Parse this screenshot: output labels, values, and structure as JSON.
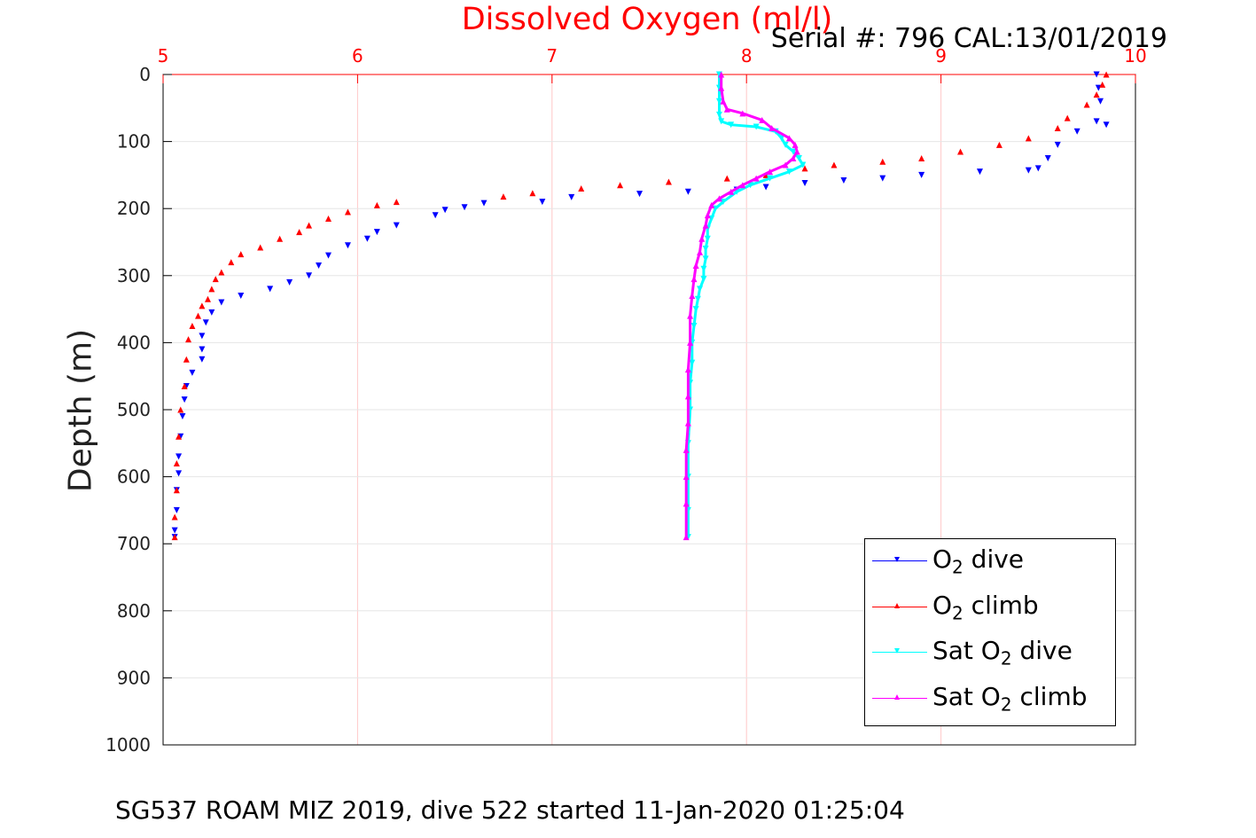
{
  "title": "Dissolved Oxygen (ml/l)",
  "serial_text": "Serial #: 796  CAL:13/01/2019",
  "caption": "SG537 ROAM MIZ 2019, dive 522 started 11-Jan-2020 01:25:04",
  "legend": {
    "items": [
      {
        "pre": "O",
        "sub": "2",
        "post": " dive"
      },
      {
        "pre": "O",
        "sub": "2",
        "post": " climb"
      },
      {
        "pre": "Sat O",
        "sub": "2",
        "post": " dive"
      },
      {
        "pre": "Sat O",
        "sub": "2",
        "post": " climb"
      }
    ]
  },
  "chart_data": {
    "type": "scatter",
    "title": "Dissolved Oxygen (ml/l)",
    "xlabel": "",
    "ylabel": "Depth (m)",
    "xlim": [
      5,
      10
    ],
    "ylim": [
      0,
      1000
    ],
    "y_reversed": true,
    "x_axis_position": "top",
    "x_ticks": [
      5,
      6,
      7,
      8,
      9,
      10
    ],
    "y_ticks": [
      0,
      100,
      200,
      300,
      400,
      500,
      600,
      700,
      800,
      900,
      1000
    ],
    "grid": true,
    "legend_position": "bottom-right",
    "colors": {
      "x_axis": "#ff0000",
      "grid": "#ffc8c8"
    },
    "series": [
      {
        "name": "O2 dive",
        "color": "#0000ff",
        "marker": "triangle-down",
        "points": [
          [
            9.8,
            0
          ],
          [
            9.81,
            20
          ],
          [
            9.82,
            40
          ],
          [
            9.8,
            70
          ],
          [
            9.85,
            75
          ],
          [
            9.7,
            85
          ],
          [
            9.6,
            105
          ],
          [
            9.55,
            125
          ],
          [
            9.5,
            140
          ],
          [
            9.45,
            143
          ],
          [
            9.2,
            145
          ],
          [
            8.9,
            150
          ],
          [
            8.7,
            155
          ],
          [
            8.5,
            158
          ],
          [
            8.3,
            162
          ],
          [
            8.1,
            168
          ],
          [
            7.95,
            172
          ],
          [
            7.7,
            175
          ],
          [
            7.45,
            178
          ],
          [
            7.1,
            183
          ],
          [
            6.95,
            190
          ],
          [
            6.65,
            192
          ],
          [
            6.55,
            198
          ],
          [
            6.45,
            202
          ],
          [
            6.4,
            210
          ],
          [
            6.2,
            225
          ],
          [
            6.1,
            235
          ],
          [
            6.05,
            245
          ],
          [
            5.95,
            255
          ],
          [
            5.85,
            270
          ],
          [
            5.8,
            285
          ],
          [
            5.75,
            300
          ],
          [
            5.65,
            310
          ],
          [
            5.55,
            320
          ],
          [
            5.4,
            330
          ],
          [
            5.3,
            340
          ],
          [
            5.25,
            355
          ],
          [
            5.22,
            370
          ],
          [
            5.2,
            390
          ],
          [
            5.2,
            410
          ],
          [
            5.2,
            425
          ],
          [
            5.15,
            445
          ],
          [
            5.12,
            465
          ],
          [
            5.11,
            485
          ],
          [
            5.1,
            510
          ],
          [
            5.09,
            540
          ],
          [
            5.08,
            570
          ],
          [
            5.08,
            595
          ],
          [
            5.07,
            620
          ],
          [
            5.07,
            650
          ],
          [
            5.06,
            680
          ],
          [
            5.06,
            690
          ]
        ]
      },
      {
        "name": "O2 climb",
        "color": "#ff0000",
        "marker": "triangle-up",
        "points": [
          [
            9.85,
            0
          ],
          [
            9.83,
            15
          ],
          [
            9.8,
            30
          ],
          [
            9.75,
            45
          ],
          [
            9.65,
            65
          ],
          [
            9.6,
            80
          ],
          [
            9.45,
            95
          ],
          [
            9.3,
            105
          ],
          [
            9.1,
            115
          ],
          [
            8.9,
            125
          ],
          [
            8.7,
            130
          ],
          [
            8.45,
            135
          ],
          [
            8.3,
            140
          ],
          [
            8.1,
            150
          ],
          [
            7.9,
            155
          ],
          [
            7.6,
            160
          ],
          [
            7.35,
            165
          ],
          [
            7.15,
            170
          ],
          [
            6.9,
            177
          ],
          [
            6.75,
            182
          ],
          [
            6.2,
            190
          ],
          [
            6.1,
            195
          ],
          [
            5.95,
            205
          ],
          [
            5.85,
            215
          ],
          [
            5.75,
            225
          ],
          [
            5.7,
            235
          ],
          [
            5.6,
            245
          ],
          [
            5.5,
            258
          ],
          [
            5.4,
            268
          ],
          [
            5.35,
            280
          ],
          [
            5.3,
            295
          ],
          [
            5.27,
            305
          ],
          [
            5.25,
            320
          ],
          [
            5.23,
            335
          ],
          [
            5.2,
            345
          ],
          [
            5.18,
            360
          ],
          [
            5.15,
            375
          ],
          [
            5.13,
            395
          ],
          [
            5.12,
            425
          ],
          [
            5.11,
            465
          ],
          [
            5.09,
            500
          ],
          [
            5.08,
            540
          ],
          [
            5.07,
            580
          ],
          [
            5.07,
            620
          ],
          [
            5.06,
            660
          ],
          [
            5.06,
            690
          ]
        ]
      },
      {
        "name": "Sat O2 dive",
        "color": "#00ffff",
        "marker": "triangle-down",
        "points": [
          [
            7.86,
            0
          ],
          [
            7.86,
            20
          ],
          [
            7.86,
            40
          ],
          [
            7.86,
            60
          ],
          [
            7.87,
            70
          ],
          [
            7.92,
            75
          ],
          [
            8.05,
            78
          ],
          [
            8.15,
            85
          ],
          [
            8.18,
            95
          ],
          [
            8.2,
            105
          ],
          [
            8.24,
            115
          ],
          [
            8.27,
            125
          ],
          [
            8.29,
            135
          ],
          [
            8.22,
            145
          ],
          [
            8.12,
            155
          ],
          [
            8.02,
            165
          ],
          [
            7.95,
            175
          ],
          [
            7.88,
            190
          ],
          [
            7.84,
            200
          ],
          [
            7.82,
            215
          ],
          [
            7.8,
            230
          ],
          [
            7.8,
            245
          ],
          [
            7.79,
            260
          ],
          [
            7.79,
            275
          ],
          [
            7.78,
            290
          ],
          [
            7.78,
            305
          ],
          [
            7.76,
            320
          ],
          [
            7.75,
            335
          ],
          [
            7.74,
            350
          ],
          [
            7.73,
            375
          ],
          [
            7.72,
            400
          ],
          [
            7.72,
            430
          ],
          [
            7.71,
            460
          ],
          [
            7.71,
            500
          ],
          [
            7.7,
            550
          ],
          [
            7.7,
            600
          ],
          [
            7.7,
            650
          ],
          [
            7.7,
            690
          ]
        ]
      },
      {
        "name": "Sat O2 climb",
        "color": "#ff00ff",
        "marker": "triangle-up",
        "points": [
          [
            7.87,
            0
          ],
          [
            7.87,
            20
          ],
          [
            7.88,
            40
          ],
          [
            7.9,
            52
          ],
          [
            7.98,
            58
          ],
          [
            8.08,
            68
          ],
          [
            8.13,
            80
          ],
          [
            8.22,
            95
          ],
          [
            8.25,
            105
          ],
          [
            8.26,
            115
          ],
          [
            8.24,
            125
          ],
          [
            8.2,
            135
          ],
          [
            8.12,
            145
          ],
          [
            8.05,
            155
          ],
          [
            7.98,
            165
          ],
          [
            7.92,
            175
          ],
          [
            7.86,
            185
          ],
          [
            7.82,
            195
          ],
          [
            7.8,
            210
          ],
          [
            7.79,
            225
          ],
          [
            7.77,
            245
          ],
          [
            7.76,
            265
          ],
          [
            7.74,
            285
          ],
          [
            7.73,
            305
          ],
          [
            7.72,
            330
          ],
          [
            7.71,
            360
          ],
          [
            7.71,
            400
          ],
          [
            7.7,
            440
          ],
          [
            7.7,
            480
          ],
          [
            7.7,
            520
          ],
          [
            7.69,
            560
          ],
          [
            7.69,
            600
          ],
          [
            7.69,
            640
          ],
          [
            7.69,
            690
          ]
        ]
      }
    ]
  }
}
